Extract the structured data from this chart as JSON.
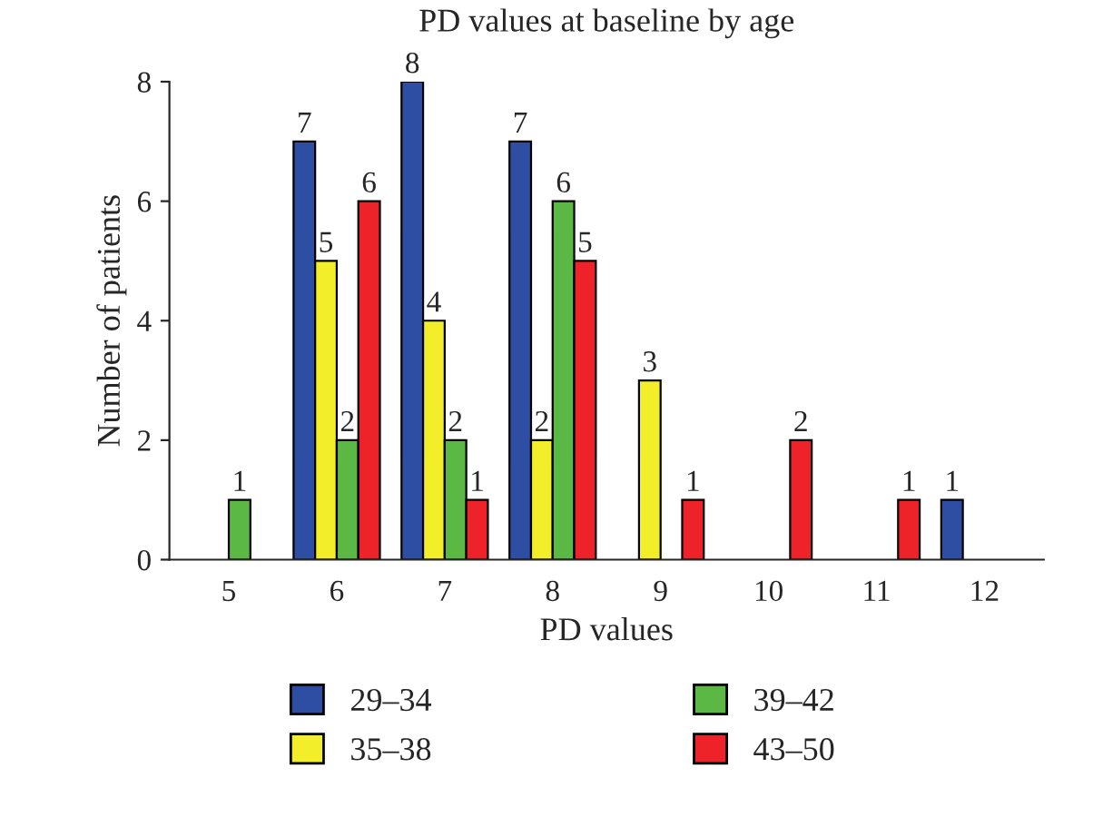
{
  "chart_data": {
    "type": "bar",
    "title": "PD values at baseline by age",
    "xlabel": "PD values",
    "ylabel": "Number of patients",
    "categories": [
      "5",
      "6",
      "7",
      "8",
      "9",
      "10",
      "11",
      "12"
    ],
    "series": [
      {
        "name": "29–34",
        "color": "#2e4ea3",
        "values": [
          0,
          7,
          8,
          7,
          0,
          0,
          0,
          1
        ],
        "value_labels": [
          null,
          "7",
          "8",
          "7",
          null,
          null,
          null,
          "1"
        ]
      },
      {
        "name": "35–38",
        "color": "#f2ef2a",
        "values": [
          0,
          5,
          4,
          2,
          3,
          0,
          0,
          0
        ],
        "value_labels": [
          null,
          "5",
          "4",
          "2",
          "3",
          null,
          null,
          null
        ]
      },
      {
        "name": "39–42",
        "color": "#5cb845",
        "values": [
          1,
          2,
          2,
          6,
          0,
          0,
          0,
          0
        ],
        "value_labels": [
          "1",
          "2",
          "2",
          "6",
          null,
          null,
          null,
          null
        ]
      },
      {
        "name": "43–50",
        "color": "#ee2229",
        "values": [
          0,
          6,
          1,
          5,
          1,
          2,
          1,
          0
        ],
        "value_labels": [
          null,
          "6",
          "1",
          "5",
          "1",
          "2",
          "1",
          null
        ]
      }
    ],
    "ylim": [
      0,
      8
    ],
    "yticks": [
      0,
      2,
      4,
      6,
      8
    ],
    "legend": "bottom"
  }
}
